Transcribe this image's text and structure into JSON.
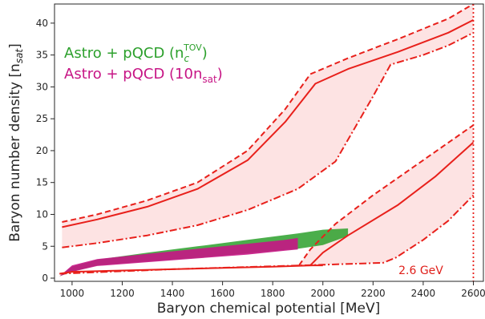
{
  "chart_data": {
    "type": "line",
    "xlabel": "Baryon chemical potential [MeV]",
    "ylabel_main": "Baryon number density [n",
    "ylabel_sub": "sat",
    "ylabel_close": "]",
    "xlim": [
      930,
      2640
    ],
    "ylim": [
      -0.5,
      43
    ],
    "xticks": [
      1000,
      1200,
      1400,
      1600,
      1800,
      2000,
      2200,
      2400,
      2600
    ],
    "yticks": [
      0,
      5,
      10,
      15,
      20,
      25,
      30,
      35,
      40
    ],
    "grid": false,
    "legend": {
      "placement": "top-left",
      "entries": [
        {
          "main": "Astro + pQCD (n",
          "sub": "c",
          "sup": "TOV",
          "close": ")",
          "color": "#2ca02c"
        },
        {
          "main": "Astro + pQCD (10n",
          "sub": "sat",
          "sup": "",
          "close": ")",
          "color": "#c71585"
        }
      ]
    },
    "annotation": {
      "text": "2.6 GeV",
      "x": 2600,
      "color": "#e0201b"
    },
    "colors": {
      "bound": "#e8201b",
      "fill": "#fde3e3",
      "green": "#2ca02c",
      "magenta": "#c71585"
    },
    "bands": {
      "upper": {
        "dashed": {
          "x": [
            960,
            1100,
            1300,
            1500,
            1700,
            1850,
            1950,
            2100,
            2300,
            2500,
            2600
          ],
          "y": [
            8.8,
            10.0,
            12.2,
            15.0,
            20.0,
            26.5,
            32.0,
            34.5,
            37.5,
            40.7,
            43.0
          ]
        },
        "solid": {
          "x": [
            960,
            1100,
            1300,
            1500,
            1700,
            1850,
            1970,
            2100,
            2300,
            2500,
            2600
          ],
          "y": [
            8.0,
            9.2,
            11.2,
            14.0,
            18.5,
            24.5,
            30.5,
            32.8,
            35.5,
            38.5,
            40.5
          ]
        },
        "dashdot": {
          "x": [
            960,
            1100,
            1300,
            1500,
            1700,
            1900,
            2050,
            2200,
            2270,
            2400,
            2500,
            2600
          ],
          "y": [
            4.8,
            5.5,
            6.7,
            8.3,
            10.7,
            14.0,
            18.3,
            28.5,
            33.5,
            35.0,
            36.5,
            38.5
          ]
        }
      },
      "lower": {
        "baseline": {
          "x": [
            950,
            1000,
            1200,
            1400,
            1600,
            1800,
            1960,
            2000
          ],
          "y": [
            0.7,
            1.0,
            1.2,
            1.4,
            1.6,
            1.8,
            2.0,
            2.0
          ]
        },
        "dashed": {
          "x": [
            1905,
            1950,
            2050,
            2200,
            2400,
            2600
          ],
          "y": [
            2.0,
            4.5,
            8.5,
            13.0,
            18.5,
            24.0
          ]
        },
        "solid": {
          "x": [
            1950,
            2000,
            2100,
            2300,
            2450,
            2600
          ],
          "y": [
            2.0,
            4.0,
            6.7,
            11.5,
            16.0,
            21.3
          ]
        },
        "dashdot": {
          "x": [
            950,
            1400,
            2000,
            2240,
            2290,
            2400,
            2500,
            2600
          ],
          "y": [
            0.7,
            1.4,
            2.1,
            2.4,
            3.2,
            6.0,
            9.0,
            13.0
          ]
        }
      }
    },
    "scatter_region": {
      "green": {
        "x": [
          950,
          1000,
          1100,
          1300,
          1500,
          1700,
          1900,
          2000,
          2100
        ],
        "lo": [
          0.3,
          1.0,
          2.0,
          2.6,
          3.2,
          3.9,
          4.6,
          5.2,
          6.6
        ],
        "hi": [
          0.3,
          1.8,
          2.9,
          4.0,
          5.0,
          6.0,
          7.0,
          7.6,
          7.8
        ]
      },
      "magenta": {
        "x": [
          950,
          1000,
          1100,
          1300,
          1500,
          1700,
          1850,
          1900
        ],
        "lo": [
          0.3,
          1.0,
          1.9,
          2.5,
          3.1,
          3.7,
          4.3,
          4.5
        ],
        "hi": [
          0.3,
          2.0,
          3.0,
          3.8,
          4.6,
          5.4,
          6.0,
          6.3
        ]
      }
    }
  }
}
